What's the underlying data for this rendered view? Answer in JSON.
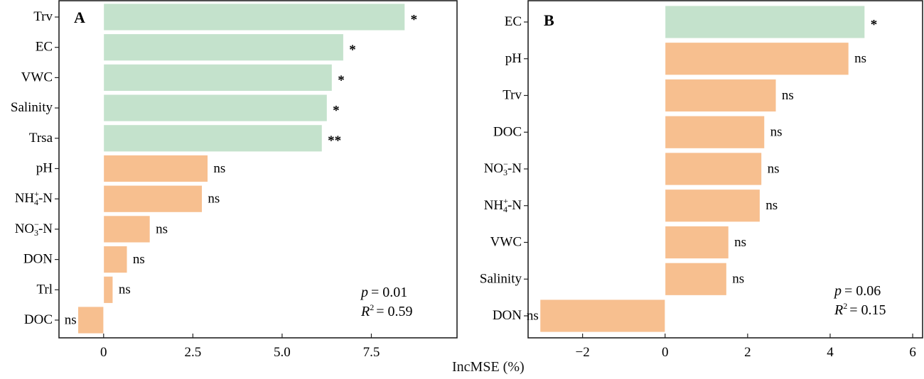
{
  "chart_data": [
    {
      "type": "bar",
      "orientation": "horizontal",
      "panel": "A",
      "xlabel": "IncMSE (%)",
      "xlim": [
        -1.25,
        9.9
      ],
      "xticks": [
        0,
        2.5,
        5.0,
        7.5
      ],
      "xtick_labels": [
        "0",
        "2.5",
        "5.0",
        "7.5"
      ],
      "categories": [
        "Trv",
        "EC",
        "VWC",
        "Salinity",
        "Trsa",
        "pH",
        "NH4+-N",
        "NO3−-N",
        "DON",
        "Trl",
        "DOC"
      ],
      "category_labels": [
        {
          "base": "Trv"
        },
        {
          "base": "EC"
        },
        {
          "base": "VWC"
        },
        {
          "base": "Salinity"
        },
        {
          "base": "Trsa"
        },
        {
          "base": "pH"
        },
        {
          "base": "NH",
          "sup": "+",
          "sub": "4",
          "tail": "-N"
        },
        {
          "base": "NO",
          "sup": "−",
          "sub": "3",
          "tail": "-N"
        },
        {
          "base": "DON"
        },
        {
          "base": "Trl"
        },
        {
          "base": "DOC"
        }
      ],
      "values": [
        8.44,
        6.72,
        6.4,
        6.26,
        6.12,
        2.92,
        2.76,
        1.3,
        0.66,
        0.26,
        -0.72
      ],
      "significance": [
        "*",
        "*",
        "*",
        "*",
        "**",
        "ns",
        "ns",
        "ns",
        "ns",
        "ns",
        "ns"
      ],
      "significant": [
        true,
        true,
        true,
        true,
        true,
        false,
        false,
        false,
        false,
        false,
        false
      ],
      "stats": {
        "p_label": "p",
        "p_value": "= 0.01",
        "r2_label": "R",
        "r2_sup": "2",
        "r2_value": "= 0.59"
      }
    },
    {
      "type": "bar",
      "orientation": "horizontal",
      "panel": "B",
      "xlabel": "IncMSE (%)",
      "xlim": [
        -3.32,
        6.24
      ],
      "xticks": [
        -2,
        0,
        2,
        4,
        6
      ],
      "xtick_labels": [
        "−2",
        "0",
        "2",
        "4",
        "6"
      ],
      "categories": [
        "EC",
        "pH",
        "Trv",
        "DOC",
        "NO3−-N",
        "NH4+-N",
        "VWC",
        "Salinity",
        "DON"
      ],
      "category_labels": [
        {
          "base": "EC"
        },
        {
          "base": "pH"
        },
        {
          "base": "Trv"
        },
        {
          "base": "DOC"
        },
        {
          "base": "NO",
          "sup": "−",
          "sub": "3",
          "tail": "-N"
        },
        {
          "base": "NH",
          "sup": "+",
          "sub": "4",
          "tail": "-N"
        },
        {
          "base": "VWC"
        },
        {
          "base": "Salinity"
        },
        {
          "base": "DON"
        }
      ],
      "values": [
        4.84,
        4.45,
        2.69,
        2.41,
        2.34,
        2.3,
        1.54,
        1.49,
        -3.03
      ],
      "significance": [
        "*",
        "ns",
        "ns",
        "ns",
        "ns",
        "ns",
        "ns",
        "ns",
        "ns"
      ],
      "significant": [
        true,
        false,
        false,
        false,
        false,
        false,
        false,
        false,
        false
      ],
      "stats": {
        "p_label": "p",
        "p_value": "= 0.06",
        "r2_label": "R",
        "r2_sup": "2",
        "r2_value": "= 0.15"
      }
    }
  ],
  "shared_xlabel": "IncMSE (%)",
  "colors": {
    "significant": "#c4e2cc",
    "not_significant": "#f7bf8f",
    "axis": "#222222"
  }
}
